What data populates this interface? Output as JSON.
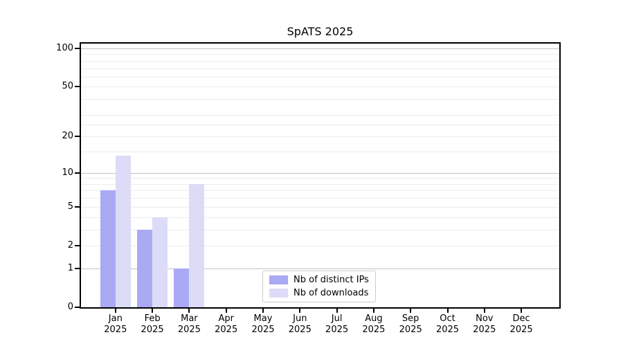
{
  "figure": {
    "background": "#ffffff"
  },
  "chart_data": {
    "type": "bar",
    "title": "SpATS 2025",
    "months": [
      "Jan",
      "Feb",
      "Mar",
      "Apr",
      "May",
      "Jun",
      "Jul",
      "Aug",
      "Sep",
      "Oct",
      "Nov",
      "Dec"
    ],
    "year": "2025",
    "series": [
      {
        "name": "Nb of distinct IPs",
        "color": "#a9a9f4",
        "values": [
          7,
          3,
          1,
          0,
          0,
          0,
          0,
          0,
          0,
          0,
          0,
          0
        ]
      },
      {
        "name": "Nb of downloads",
        "color": "#dcdcf8",
        "values": [
          14,
          4,
          8,
          0,
          0,
          0,
          0,
          0,
          0,
          0,
          0,
          0
        ]
      }
    ],
    "y_axis": {
      "scale": "log1p",
      "tick_labels": [
        100,
        50,
        20,
        10,
        5,
        2,
        1,
        0
      ],
      "major_gridlines": [
        1,
        10,
        100
      ],
      "minor_gridlines": [
        2,
        3,
        4,
        5,
        6,
        7,
        8,
        9,
        15,
        20,
        25,
        30,
        40,
        50,
        60,
        70,
        80,
        90
      ],
      "range": [
        0,
        115
      ]
    },
    "legend": {
      "position": "lower center"
    },
    "grid": true
  }
}
